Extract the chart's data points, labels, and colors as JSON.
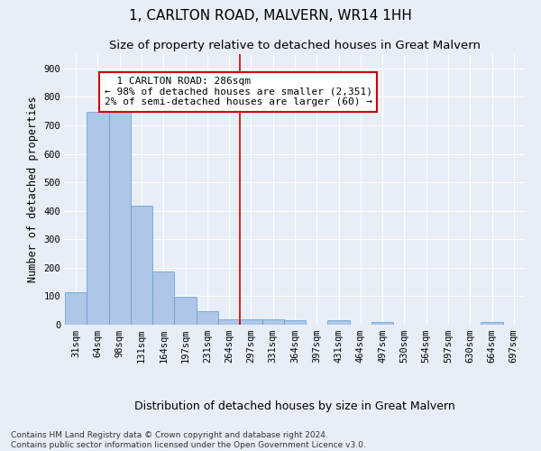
{
  "title": "1, CARLTON ROAD, MALVERN, WR14 1HH",
  "subtitle": "Size of property relative to detached houses in Great Malvern",
  "xlabel": "Distribution of detached houses by size in Great Malvern",
  "ylabel": "Number of detached properties",
  "categories": [
    "31sqm",
    "64sqm",
    "98sqm",
    "131sqm",
    "164sqm",
    "197sqm",
    "231sqm",
    "264sqm",
    "297sqm",
    "331sqm",
    "364sqm",
    "397sqm",
    "431sqm",
    "464sqm",
    "497sqm",
    "530sqm",
    "564sqm",
    "597sqm",
    "630sqm",
    "664sqm",
    "697sqm"
  ],
  "values": [
    113,
    748,
    750,
    418,
    188,
    97,
    47,
    20,
    20,
    18,
    15,
    0,
    15,
    0,
    8,
    0,
    0,
    0,
    0,
    8,
    0
  ],
  "bar_color": "#aec6e8",
  "bar_edge_color": "#5b9bd5",
  "background_color": "#e8eef7",
  "grid_color": "#ffffff",
  "vline_color": "#cc0000",
  "annotation_text": "  1 CARLTON ROAD: 286sqm\n← 98% of detached houses are smaller (2,351)\n2% of semi-detached houses are larger (60) →",
  "annotation_box_color": "#ffffff",
  "annotation_box_edge_color": "#cc0000",
  "ylim": [
    0,
    950
  ],
  "yticks": [
    0,
    100,
    200,
    300,
    400,
    500,
    600,
    700,
    800,
    900
  ],
  "footer_text": "Contains HM Land Registry data © Crown copyright and database right 2024.\nContains public sector information licensed under the Open Government Licence v3.0.",
  "title_fontsize": 11,
  "subtitle_fontsize": 9.5,
  "xlabel_fontsize": 9,
  "ylabel_fontsize": 8.5,
  "tick_fontsize": 7.5,
  "annotation_fontsize": 8,
  "footer_fontsize": 6.5
}
